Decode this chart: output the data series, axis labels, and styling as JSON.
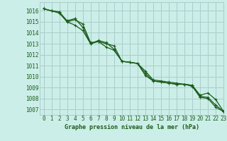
{
  "title": "Graphe pression niveau de la mer (hPa)",
  "background_color": "#cceee8",
  "grid_color": "#aacccc",
  "line_color": "#1a5c1a",
  "marker_color": "#1a5c1a",
  "xlim": [
    -0.5,
    23
  ],
  "ylim": [
    1006.5,
    1016.8
  ],
  "yticks": [
    1007,
    1008,
    1009,
    1010,
    1011,
    1012,
    1013,
    1014,
    1015,
    1016
  ],
  "xticks": [
    0,
    1,
    2,
    3,
    4,
    5,
    6,
    7,
    8,
    9,
    10,
    11,
    12,
    13,
    14,
    15,
    16,
    17,
    18,
    19,
    20,
    21,
    22,
    23
  ],
  "line1_x": [
    0,
    1,
    2,
    3,
    4,
    5,
    6,
    7,
    8,
    9,
    10,
    11,
    12,
    13,
    14,
    15,
    16,
    17,
    18,
    19,
    20,
    21,
    22,
    23
  ],
  "line1_y": [
    1016.2,
    1016.0,
    1015.8,
    1015.0,
    1015.2,
    1014.8,
    1013.1,
    1013.2,
    1013.0,
    1012.8,
    1011.4,
    1011.3,
    1011.2,
    1010.5,
    1009.7,
    1009.6,
    1009.5,
    1009.4,
    1009.3,
    1009.1,
    1008.1,
    1008.0,
    1007.2,
    1006.8
  ],
  "line2_x": [
    0,
    1,
    2,
    3,
    4,
    5,
    6,
    7,
    8,
    9,
    10,
    11,
    12,
    13,
    14,
    15,
    16,
    17,
    18,
    19,
    20,
    21,
    22,
    23
  ],
  "line2_y": [
    1016.2,
    1016.0,
    1015.9,
    1015.1,
    1015.3,
    1014.5,
    1013.0,
    1013.3,
    1013.1,
    1012.5,
    1011.4,
    1011.3,
    1011.2,
    1010.3,
    1009.6,
    1009.5,
    1009.4,
    1009.3,
    1009.3,
    1009.2,
    1008.2,
    1008.1,
    1007.4,
    1006.8
  ],
  "line3_x": [
    0,
    1,
    2,
    3,
    4,
    5,
    6,
    7,
    8,
    9,
    10,
    11,
    12,
    13,
    14,
    15,
    16,
    17,
    18,
    19,
    20,
    21,
    22,
    23
  ],
  "line3_y": [
    1016.2,
    1016.0,
    1015.9,
    1015.0,
    1014.7,
    1014.2,
    1013.0,
    1013.2,
    1012.7,
    1012.4,
    1011.4,
    1011.3,
    1011.2,
    1010.1,
    1009.6,
    1009.5,
    1009.4,
    1009.3,
    1009.3,
    1009.2,
    1008.3,
    1008.5,
    1007.9,
    1006.8
  ],
  "ylabel_fontsize": 5.5,
  "xlabel_fontsize": 6.0,
  "tick_fontsize": 5.5
}
